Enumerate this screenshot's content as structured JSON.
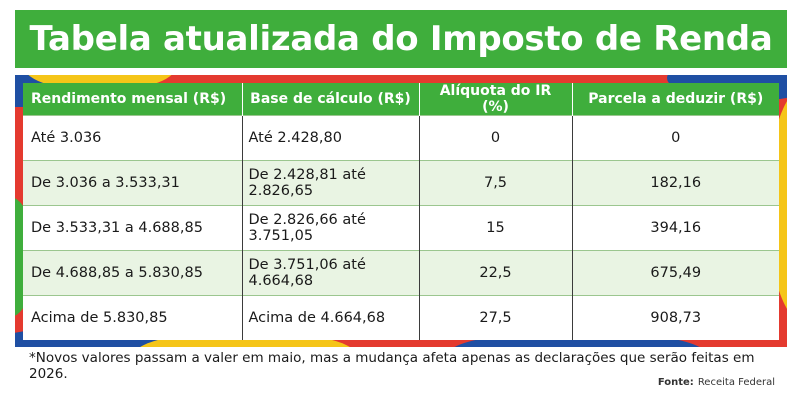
{
  "title": "Tabela atualizada do Imposto de Renda",
  "colors": {
    "green": "#3fae3c",
    "red": "#e43a2f",
    "yellow": "#f5c518",
    "blue": "#1f4fa3",
    "row_alt": "#e9f4e3"
  },
  "table": {
    "headers": [
      "Rendimento mensal (R$)",
      "Base de cálculo (R$)",
      "Alíquota do IR (%)",
      "Parcela a deduzir (R$)"
    ],
    "rows": [
      [
        "Até 3.036",
        "Até 2.428,80",
        "0",
        "0"
      ],
      [
        "De 3.036 a 3.533,31",
        "De 2.428,81 até 2.826,65",
        "7,5",
        "182,16"
      ],
      [
        "De 3.533,31 a 4.688,85",
        "De 2.826,66 até 3.751,05",
        "15",
        "394,16"
      ],
      [
        "De 4.688,85 a 5.830,85",
        "De 3.751,06 até 4.664,68",
        "22,5",
        "675,49"
      ],
      [
        "Acima de 5.830,85",
        "Acima de 4.664,68",
        "27,5",
        "908,73"
      ]
    ]
  },
  "footnote": "*Novos valores passam a valer em maio, mas a mudança afeta apenas as declarações que serão feitas em 2026.",
  "source": {
    "label": "Fonte:",
    "value": "Receita Federal"
  }
}
